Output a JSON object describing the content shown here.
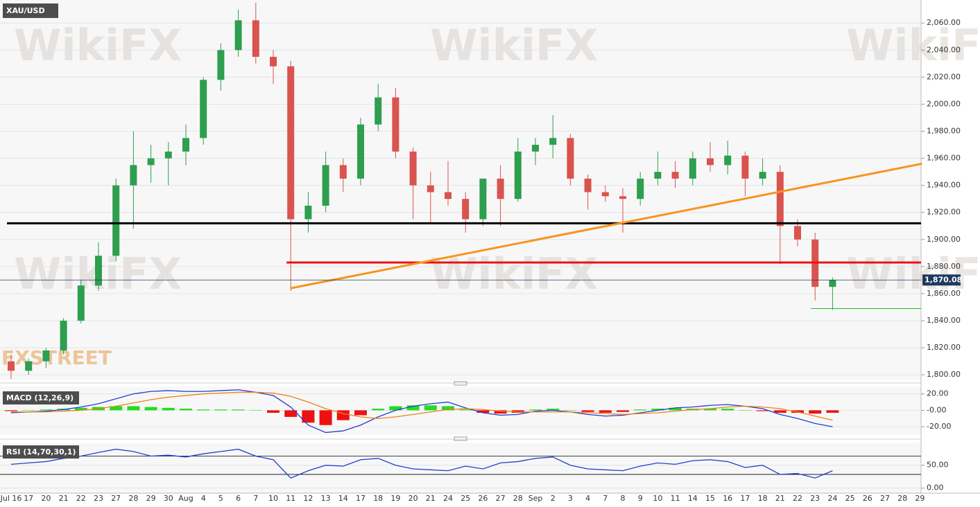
{
  "chart_data": {
    "type": "candlestick",
    "title": "XAU/USD",
    "watermark": "WikiFX",
    "brand": "FXSTREET",
    "categories": [
      "Jul 16",
      "17",
      "20",
      "21",
      "22",
      "23",
      "27",
      "28",
      "29",
      "30",
      "Aug",
      "4",
      "5",
      "6",
      "7",
      "10",
      "11",
      "12",
      "13",
      "14",
      "17",
      "18",
      "19",
      "20",
      "21",
      "24",
      "25",
      "26",
      "27",
      "28",
      "Sep",
      "2",
      "3",
      "4",
      "7",
      "8",
      "9",
      "10",
      "11",
      "14",
      "15",
      "16",
      "17",
      "18",
      "21",
      "22",
      "23",
      "24",
      "25",
      "26",
      "27",
      "28",
      "29"
    ],
    "up_color": "#2e9e4f",
    "down_color": "#d9534f",
    "open": [
      1810,
      1803,
      1810,
      1818,
      1840,
      1866,
      1888,
      1940,
      1955,
      1960,
      1965,
      1975,
      2018,
      2040,
      2062,
      2035,
      2028,
      1915,
      1925,
      1955,
      1945,
      1985,
      2005,
      1965,
      1940,
      1935,
      1930,
      1915,
      1945,
      1930,
      1965,
      1970,
      1975,
      1945,
      1935,
      1932,
      1930,
      1945,
      1950,
      1945,
      1960,
      1955,
      1962,
      1945,
      1950,
      1910,
      1900,
      1865,
      null,
      null,
      null,
      null,
      null
    ],
    "high": [
      1815,
      1812,
      1820,
      1842,
      1870,
      1898,
      1945,
      1980,
      1970,
      1972,
      1985,
      2020,
      2045,
      2070,
      2075,
      2040,
      2032,
      1935,
      1965,
      1960,
      1990,
      2015,
      2012,
      1968,
      1950,
      1958,
      1935,
      1945,
      1955,
      1975,
      1975,
      1992,
      1978,
      1948,
      1940,
      1938,
      1950,
      1965,
      1958,
      1965,
      1972,
      1973,
      1965,
      1960,
      1955,
      1915,
      1905,
      1872,
      null,
      null,
      null,
      null,
      null
    ],
    "low": [
      1797,
      1800,
      1805,
      1815,
      1838,
      1862,
      1884,
      1908,
      1942,
      1940,
      1955,
      1970,
      2010,
      2035,
      2030,
      2015,
      1862,
      1905,
      1920,
      1935,
      1940,
      1980,
      1960,
      1915,
      1912,
      1925,
      1905,
      1910,
      1910,
      1928,
      1955,
      1960,
      1940,
      1922,
      1928,
      1905,
      1925,
      1940,
      1938,
      1940,
      1950,
      1948,
      1932,
      1940,
      1882,
      1895,
      1855,
      1848,
      null,
      null,
      null,
      null,
      null
    ],
    "close": [
      1803,
      1810,
      1818,
      1840,
      1866,
      1888,
      1940,
      1955,
      1960,
      1965,
      1975,
      2018,
      2040,
      2062,
      2035,
      2028,
      1915,
      1925,
      1955,
      1945,
      1985,
      2005,
      1965,
      1940,
      1935,
      1930,
      1915,
      1945,
      1930,
      1965,
      1970,
      1975,
      1945,
      1935,
      1932,
      1930,
      1945,
      1950,
      1945,
      1960,
      1955,
      1962,
      1945,
      1950,
      1910,
      1900,
      1865,
      1870,
      null,
      null,
      null,
      null,
      null
    ],
    "ylim": [
      1796,
      2077
    ],
    "yticks": [
      {
        "value": 1800,
        "label": "1,800.00"
      },
      {
        "value": 1820,
        "label": "1,820.00"
      },
      {
        "value": 1840,
        "label": "1,840.00"
      },
      {
        "value": 1860,
        "label": "1,860.00"
      },
      {
        "value": 1880,
        "label": "1,880.00"
      },
      {
        "value": 1900,
        "label": "1,900.00"
      },
      {
        "value": 1920,
        "label": "1,920.00"
      },
      {
        "value": 1940,
        "label": "1,940.00"
      },
      {
        "value": 1960,
        "label": "1,960.00"
      },
      {
        "value": 1980,
        "label": "1,980.00"
      },
      {
        "value": 2000,
        "label": "2,000.00"
      },
      {
        "value": 2020,
        "label": "2,020.00"
      },
      {
        "value": 2040,
        "label": "2,040.00"
      },
      {
        "value": 2060,
        "label": "2,060.00"
      }
    ],
    "grid": true,
    "last_price": {
      "value": 1870.08,
      "label": "1,870.08",
      "color": "#1f3a5f"
    },
    "levels": [
      {
        "value": 1912,
        "color": "#000000",
        "from": 0,
        "width": 3
      },
      {
        "value": 1883,
        "color": "#ee1111",
        "from": 16,
        "width": 3
      },
      {
        "value": 1849,
        "color": "#22bb22",
        "from": 46,
        "width": 1
      }
    ],
    "trendline": {
      "color": "#f7941d",
      "x": [
        16,
        52
      ],
      "y": [
        1864,
        1956
      ]
    },
    "macd": {
      "label": "MACD (12,26,9)",
      "ylim": [
        -30,
        29
      ],
      "yticks": [
        {
          "value": 20,
          "label": "20.00"
        },
        {
          "value": 0,
          "label": "-0.00"
        },
        {
          "value": -20,
          "label": "-20.00"
        }
      ],
      "series": [
        {
          "name": "MACD",
          "color": "#1f3fd0",
          "values": [
            -3,
            -2,
            -1,
            1,
            4,
            8,
            14,
            20,
            23,
            24,
            23,
            23,
            24,
            25,
            22,
            18,
            4,
            -18,
            -27,
            -25,
            -18,
            -8,
            0,
            5,
            8,
            10,
            3,
            -3,
            -6,
            -5,
            -1,
            0,
            -2,
            -5,
            -7,
            -6,
            -3,
            0,
            3,
            4,
            6,
            7,
            5,
            2,
            -5,
            -10,
            -16,
            -20,
            null,
            null,
            null,
            null,
            null
          ]
        },
        {
          "name": "Signal",
          "color": "#f07f1a",
          "values": [
            -2,
            -2,
            -2,
            -1,
            0,
            2,
            5,
            9,
            13,
            16,
            18,
            20,
            21,
            22,
            22,
            21,
            17,
            10,
            2,
            -4,
            -8,
            -10,
            -8,
            -5,
            -2,
            1,
            2,
            1,
            -1,
            -2,
            -2,
            -2,
            -2,
            -3,
            -4,
            -5,
            -4,
            -3,
            -1,
            1,
            2,
            4,
            5,
            4,
            2,
            -2,
            -7,
            -12,
            null,
            null,
            null,
            null,
            null
          ]
        }
      ],
      "histogram": {
        "up_color": "#22dd22",
        "down_color": "#ee1111",
        "values": [
          -1,
          0,
          1,
          2,
          3,
          4,
          5,
          5,
          4,
          3,
          2,
          1,
          1,
          1,
          0,
          -3,
          -8,
          -15,
          -18,
          -12,
          -6,
          2,
          5,
          6,
          6,
          5,
          1,
          -3,
          -4,
          -3,
          1,
          2,
          0,
          -2,
          -3,
          -2,
          1,
          2,
          3,
          2,
          2,
          2,
          0,
          -1,
          -3,
          -3,
          -4,
          -3,
          null,
          null,
          null,
          null,
          null
        ]
      }
    },
    "rsi": {
      "label": "RSI (14,70,30,1)",
      "ylim": [
        -11,
        98
      ],
      "yticks": [
        {
          "value": 50,
          "label": "50.00"
        },
        {
          "value": 0,
          "label": "0.00"
        }
      ],
      "levels": [
        70,
        30
      ],
      "color": "#1f3fd0",
      "values": [
        52,
        55,
        58,
        65,
        70,
        78,
        85,
        80,
        70,
        72,
        68,
        75,
        80,
        85,
        70,
        62,
        22,
        38,
        50,
        48,
        62,
        65,
        50,
        42,
        40,
        38,
        48,
        42,
        55,
        58,
        65,
        68,
        50,
        42,
        40,
        38,
        48,
        55,
        52,
        60,
        62,
        58,
        45,
        50,
        30,
        32,
        22,
        38,
        null,
        null,
        null,
        null,
        null
      ]
    }
  }
}
